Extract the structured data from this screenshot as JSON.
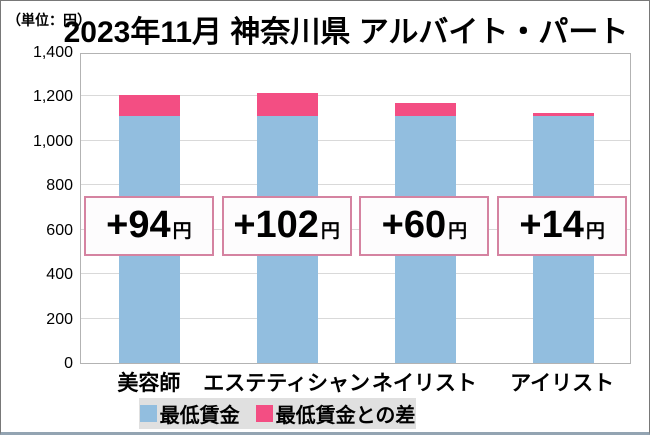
{
  "chart_data": {
    "type": "bar",
    "stacked": true,
    "title": "2023年11月 神奈川県 アルバイト・パート",
    "unit_label": "（単位：円）",
    "categories": [
      "美容師",
      "エステティシャン",
      "ネイリスト",
      "アイリスト"
    ],
    "series": [
      {
        "name": "最低賃金",
        "color": "#92BEDF",
        "values": [
          1112,
          1112,
          1112,
          1112
        ]
      },
      {
        "name": "最低賃金との差",
        "color": "#F34E83",
        "values": [
          94,
          102,
          60,
          14
        ]
      }
    ],
    "totals": [
      1206,
      1214,
      1172,
      1126
    ],
    "annotations": [
      {
        "label": "+94",
        "unit": "円"
      },
      {
        "label": "+102",
        "unit": "円"
      },
      {
        "label": "+60",
        "unit": "円"
      },
      {
        "label": "+14",
        "unit": "円"
      }
    ],
    "y_ticks": [
      "1,400",
      "1,200",
      "1,000",
      "800",
      "600",
      "400",
      "200",
      "0"
    ],
    "ylim": [
      0,
      1400
    ],
    "grid": true,
    "legend_position": "bottom",
    "colors": {
      "bar_blue": "#92BEDF",
      "bar_pink": "#F34E83",
      "annotation_border": "#D583A1",
      "annotation_bg": "#FDFCFD",
      "gridline": "#D9D9D9",
      "plot_border": "#B3B3B3",
      "legend_bg": "#E0E0E0",
      "text": "#000000"
    }
  }
}
